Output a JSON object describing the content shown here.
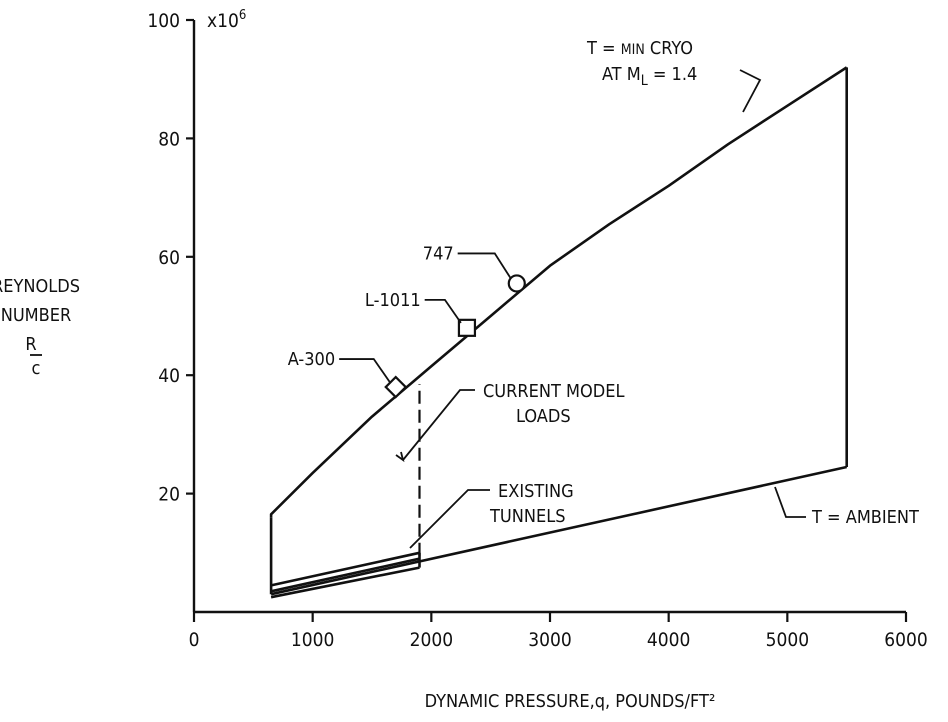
{
  "chart_data": {
    "type": "line",
    "xlabel": "DYNAMIC PRESSURE,q, POUNDS/FT²",
    "ylabel_lines": [
      "REYNOLDS",
      "NUMBER",
      "R",
      "c"
    ],
    "y_multiplier": "x10",
    "y_multiplier_exp": "6",
    "xlim": [
      0,
      6000
    ],
    "ylim": [
      0,
      100
    ],
    "x_ticks": [
      0,
      1000,
      2000,
      3000,
      4000,
      5000,
      6000
    ],
    "y_ticks": [
      20,
      40,
      60,
      80,
      100
    ],
    "x_tick_labels": [
      "0",
      "1000",
      "2000",
      "3000",
      "4000",
      "5000",
      "6000"
    ],
    "y_tick_labels": [
      "20",
      "40",
      "60",
      "80",
      "100"
    ],
    "grid": false,
    "envelope": {
      "min_cryo_boundary": [
        [
          650,
          16
        ],
        [
          650,
          16.5
        ],
        [
          1000,
          23.5
        ],
        [
          1500,
          33
        ],
        [
          2000,
          41.5
        ],
        [
          2500,
          50
        ],
        [
          3000,
          58.5
        ],
        [
          3500,
          65.5
        ],
        [
          4000,
          72
        ],
        [
          4500,
          79
        ],
        [
          5000,
          85.5
        ],
        [
          5500,
          92
        ]
      ],
      "ambient_boundary": [
        [
          650,
          3
        ],
        [
          5500,
          24.5
        ]
      ],
      "left_edge_x": 650,
      "right_edge_x": 5500
    },
    "existing_tunnels": {
      "upper": [
        [
          650,
          4.5
        ],
        [
          1900,
          10
        ]
      ],
      "lower": [
        [
          650,
          2.5
        ],
        [
          1900,
          7.5
        ]
      ],
      "middle": [
        [
          650,
          3.5
        ],
        [
          1900,
          9
        ]
      ],
      "right_edge_x": 1900
    },
    "current_model_loads_x": 1900,
    "current_model_loads_y_range": [
      9.5,
      38.5
    ],
    "aircraft_points": [
      {
        "label": "A-300",
        "x": 1700,
        "y": 38,
        "marker": "diamond"
      },
      {
        "label": "L-1011",
        "x": 2300,
        "y": 48,
        "marker": "square"
      },
      {
        "label": "747",
        "x": 2720,
        "y": 55.5,
        "marker": "circle"
      }
    ],
    "annotations": {
      "min_cryo_line1_pre": "T = ",
      "min_cryo_line1_small": "MIN",
      "min_cryo_line1_post": " CRYO",
      "min_cryo_line2_pre": "AT M",
      "min_cryo_line2_sub": "L",
      "min_cryo_line2_post": " = 1.4",
      "ambient": "T = AMBIENT",
      "current_model_loads_line1": "CURRENT MODEL",
      "current_model_loads_line2": "LOADS",
      "existing_tunnels_line1": "EXISTING",
      "existing_tunnels_line2": "TUNNELS"
    }
  }
}
